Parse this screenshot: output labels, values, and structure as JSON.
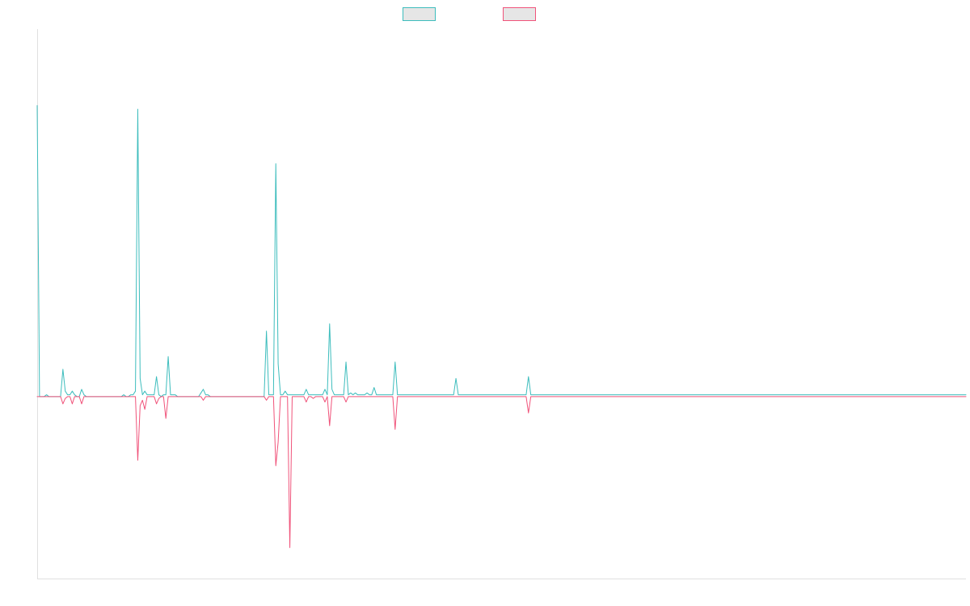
{
  "chart_data": {
    "type": "line",
    "title": "",
    "xlabel": "",
    "ylabel": "",
    "grid": false,
    "legend_position": "top-center",
    "x": [
      0,
      1,
      2,
      3,
      4,
      5,
      6,
      7,
      8,
      9,
      10,
      11,
      12,
      13,
      14,
      15,
      16,
      17,
      18,
      19,
      20,
      21,
      22,
      23,
      24,
      25,
      26,
      27,
      28,
      29,
      30,
      31,
      32,
      33,
      34,
      35,
      36,
      37,
      38,
      39,
      40,
      41,
      42,
      43,
      44,
      45,
      46,
      47,
      48,
      49,
      50,
      51,
      52,
      53,
      54,
      55,
      56,
      57,
      58,
      59,
      60,
      61,
      62,
      63,
      64,
      65,
      66,
      67,
      68,
      69,
      70,
      71,
      72,
      73,
      74,
      75,
      76,
      77,
      78,
      79,
      80,
      81,
      82,
      83,
      84,
      85,
      86,
      87,
      88,
      89,
      90,
      91,
      92,
      93,
      94,
      95,
      96,
      97,
      98,
      99,
      100,
      101,
      102,
      103,
      104,
      105,
      106,
      107,
      108,
      109,
      110,
      111,
      112,
      113,
      114,
      115,
      116,
      117,
      118,
      119,
      120,
      121,
      122,
      123,
      124,
      125,
      126,
      127,
      128,
      129,
      130,
      131,
      132,
      133,
      134,
      135,
      136,
      137,
      138,
      139,
      140,
      141,
      142,
      143,
      144,
      145,
      146,
      147,
      148,
      149,
      150,
      151,
      152,
      153,
      154,
      155,
      156,
      157,
      158,
      159,
      160,
      161,
      162,
      163,
      164,
      165,
      166,
      167,
      168,
      169,
      170,
      171,
      172,
      173,
      174,
      175,
      176,
      177,
      178,
      179,
      180,
      181,
      182,
      183,
      184,
      185,
      186,
      187,
      188,
      189,
      190,
      191,
      192,
      193,
      194,
      195,
      196,
      197,
      198,
      199,
      200,
      201,
      202,
      203,
      204,
      205,
      206,
      207,
      208,
      209,
      210,
      211,
      212,
      213,
      214,
      215,
      216,
      217,
      218,
      219,
      220,
      221,
      222,
      223,
      224,
      225,
      226,
      227,
      228,
      229,
      230,
      231,
      232,
      233,
      234,
      235,
      236,
      237,
      238,
      239,
      240,
      241,
      242,
      243,
      244,
      245,
      246,
      247,
      248,
      249,
      250,
      251,
      252,
      253,
      254,
      255,
      256,
      257,
      258,
      259,
      260,
      261,
      262,
      263,
      264,
      265,
      266,
      267,
      268,
      269,
      270,
      271,
      272,
      273,
      274,
      275,
      276,
      277,
      278,
      279,
      280,
      281,
      282,
      283,
      284,
      285,
      286,
      287,
      288,
      289,
      290,
      291,
      292,
      293,
      294,
      295,
      296,
      297,
      298,
      299,
      300,
      301,
      302,
      303,
      304,
      305,
      306,
      307,
      308,
      309,
      310,
      311,
      312,
      313,
      314,
      315,
      316,
      317,
      318,
      319,
      320,
      321,
      322,
      323,
      324,
      325,
      326,
      327,
      328,
      329,
      330,
      331,
      332,
      333,
      334,
      335,
      336,
      337,
      338,
      339,
      340,
      341,
      342,
      343,
      344,
      345,
      346,
      347,
      348,
      349,
      350,
      351,
      352,
      353,
      354,
      355,
      356,
      357,
      358,
      359,
      360,
      361,
      362,
      363,
      364,
      365,
      366,
      367,
      368,
      369,
      370,
      371,
      372,
      373,
      374,
      375,
      376,
      377,
      378,
      379,
      380,
      381,
      382,
      383,
      384,
      385,
      386,
      387,
      388,
      389,
      390,
      391,
      392,
      393,
      394,
      395,
      396,
      397
    ],
    "xlim": [
      0,
      397
    ],
    "ylim": [
      -100,
      202
    ],
    "series": [
      {
        "color": "#3dbdbd",
        "values": [
          160,
          0,
          0,
          0,
          1,
          0,
          0,
          0,
          0,
          0,
          0,
          15,
          3,
          1,
          1,
          3,
          1,
          0,
          0,
          4,
          1,
          0,
          0,
          0,
          0,
          0,
          0,
          0,
          0,
          0,
          0,
          0,
          0,
          0,
          0,
          0,
          0,
          1,
          0,
          0,
          1,
          1,
          3,
          158,
          10,
          1,
          3,
          1,
          1,
          1,
          1,
          11,
          1,
          0,
          1,
          1,
          22,
          1,
          1,
          1,
          0,
          0,
          0,
          0,
          0,
          0,
          0,
          0,
          0,
          0,
          2,
          4,
          1,
          1,
          0,
          0,
          0,
          0,
          0,
          0,
          0,
          0,
          0,
          0,
          0,
          0,
          0,
          0,
          0,
          0,
          0,
          0,
          0,
          0,
          0,
          0,
          0,
          0,
          36,
          1,
          1,
          1,
          128,
          18,
          1,
          1,
          3,
          1,
          1,
          1,
          1,
          1,
          1,
          1,
          1,
          4,
          1,
          1,
          1,
          1,
          1,
          1,
          1,
          4,
          1,
          40,
          4,
          1,
          1,
          1,
          1,
          1,
          19,
          1,
          2,
          1,
          2,
          1,
          1,
          1,
          1,
          2,
          1,
          1,
          5,
          1,
          1,
          1,
          1,
          1,
          1,
          1,
          1,
          19,
          1,
          1,
          1,
          1,
          1,
          1,
          1,
          1,
          1,
          1,
          1,
          1,
          1,
          1,
          1,
          1,
          1,
          1,
          1,
          1,
          1,
          1,
          1,
          1,
          1,
          10,
          1,
          1,
          1,
          1,
          1,
          1,
          1,
          1,
          1,
          1,
          1,
          1,
          1,
          1,
          1,
          1,
          1,
          1,
          1,
          1,
          1,
          1,
          1,
          1,
          1,
          1,
          1,
          1,
          1,
          1,
          11,
          1,
          1,
          1,
          1,
          1,
          1,
          1,
          1,
          1,
          1,
          1,
          1,
          1,
          1,
          1,
          1,
          1,
          1,
          1,
          1,
          1,
          1,
          1,
          1,
          1,
          1,
          1,
          1,
          1,
          1,
          1,
          1,
          1,
          1,
          1,
          1,
          1,
          1,
          1,
          1,
          1,
          1,
          1,
          1,
          1,
          1,
          1,
          1,
          1,
          1,
          1,
          1,
          1,
          1,
          1,
          1,
          1,
          1,
          1,
          1,
          1,
          1,
          1,
          1,
          1,
          1,
          1,
          1,
          1,
          1,
          1,
          1,
          1,
          1,
          1,
          1,
          1,
          1,
          1,
          1,
          1,
          1,
          1,
          1,
          1,
          1,
          1,
          1,
          1,
          1,
          1,
          1,
          1,
          1,
          1,
          1,
          1,
          1,
          1,
          1,
          1,
          1,
          1,
          1,
          1,
          1,
          1,
          1,
          1,
          1,
          1,
          1,
          1,
          1,
          1,
          1,
          1,
          1,
          1,
          1,
          1,
          1,
          1,
          1,
          1,
          1,
          1,
          1,
          1,
          1,
          1,
          1,
          1,
          1,
          1,
          1,
          1,
          1,
          1,
          1,
          1,
          1,
          1,
          1,
          1,
          1,
          1,
          1,
          1,
          1,
          1,
          1,
          1,
          1,
          1,
          1,
          1,
          1,
          1,
          1,
          1,
          1,
          1,
          1,
          1,
          1,
          1,
          1,
          1,
          1,
          1,
          1,
          1,
          1,
          1,
          1,
          1,
          1,
          1,
          1,
          1,
          1,
          1,
          1,
          1,
          1,
          1
        ]
      },
      {
        "color": "#f0537a",
        "values": [
          0,
          0,
          0,
          0,
          0,
          0,
          0,
          0,
          0,
          0,
          0,
          -4,
          -1,
          0,
          0,
          -4,
          0,
          0,
          0,
          -4,
          0,
          0,
          0,
          0,
          0,
          0,
          0,
          0,
          0,
          0,
          0,
          0,
          0,
          0,
          0,
          0,
          0,
          0,
          0,
          0,
          0,
          0,
          0,
          -35,
          -5,
          -2,
          -7,
          0,
          0,
          0,
          0,
          -4,
          -1,
          0,
          0,
          -12,
          0,
          0,
          0,
          0,
          0,
          0,
          0,
          0,
          0,
          0,
          0,
          0,
          0,
          0,
          0,
          -2,
          0,
          0,
          0,
          0,
          0,
          0,
          0,
          0,
          0,
          0,
          0,
          0,
          0,
          0,
          0,
          0,
          0,
          0,
          0,
          0,
          0,
          0,
          0,
          0,
          0,
          0,
          -2,
          0,
          0,
          0,
          -38,
          -25,
          0,
          0,
          0,
          0,
          -83,
          0,
          0,
          0,
          0,
          0,
          0,
          -3,
          0,
          0,
          -1,
          0,
          0,
          0,
          0,
          -3,
          0,
          -16,
          0,
          0,
          0,
          0,
          0,
          0,
          -3,
          0,
          0,
          0,
          0,
          0,
          0,
          0,
          0,
          0,
          0,
          0,
          0,
          0,
          0,
          0,
          0,
          0,
          0,
          0,
          0,
          -18,
          0,
          0,
          0,
          0,
          0,
          0,
          0,
          0,
          0,
          0,
          0,
          0,
          0,
          0,
          0,
          0,
          0,
          0,
          0,
          0,
          0,
          0,
          0,
          0,
          0,
          0,
          0,
          0,
          0,
          0,
          0,
          0,
          0,
          0,
          0,
          0,
          0,
          0,
          0,
          0,
          0,
          0,
          0,
          0,
          0,
          0,
          0,
          0,
          0,
          0,
          0,
          0,
          0,
          0,
          0,
          0,
          -9,
          0,
          0,
          0,
          0,
          0,
          0,
          0,
          0,
          0,
          0,
          0,
          0,
          0,
          0,
          0,
          0,
          0,
          0,
          0,
          0,
          0,
          0,
          0,
          0,
          0,
          0,
          0,
          0,
          0,
          0,
          0,
          0,
          0,
          0,
          0,
          0,
          0,
          0,
          0,
          0,
          0,
          0,
          0,
          0,
          0,
          0,
          0,
          0,
          0,
          0,
          0,
          0,
          0,
          0,
          0,
          0,
          0,
          0,
          0,
          0,
          0,
          0,
          0,
          0,
          0,
          0,
          0,
          0,
          0,
          0,
          0,
          0,
          0,
          0,
          0,
          0,
          0,
          0,
          0,
          0,
          0,
          0,
          0,
          0,
          0,
          0,
          0,
          0,
          0,
          0,
          0,
          0,
          0,
          0,
          0,
          0,
          0,
          0,
          0,
          0,
          0,
          0,
          0,
          0,
          0,
          0,
          0,
          0,
          0,
          0,
          0,
          0,
          0,
          0,
          0,
          0,
          0,
          0,
          0,
          0,
          0,
          0,
          0,
          0,
          0,
          0,
          0,
          0,
          0,
          0,
          0,
          0,
          0,
          0,
          0,
          0,
          0,
          0,
          0,
          0,
          0,
          0,
          0,
          0,
          0,
          0,
          0,
          0,
          0,
          0,
          0,
          0,
          0,
          0,
          0,
          0,
          0,
          0,
          0,
          0,
          0,
          0,
          0,
          0,
          0,
          0,
          0,
          0,
          0,
          0,
          0,
          0,
          0,
          0,
          0,
          0,
          0,
          0,
          0,
          0,
          0,
          0,
          0,
          0,
          0,
          0,
          0
        ]
      }
    ],
    "legend_items": [
      {
        "color": "#3dbdbd",
        "fill": "#e6e6e6"
      },
      {
        "color": "#f0537a",
        "fill": "#e6e6e6"
      }
    ]
  }
}
